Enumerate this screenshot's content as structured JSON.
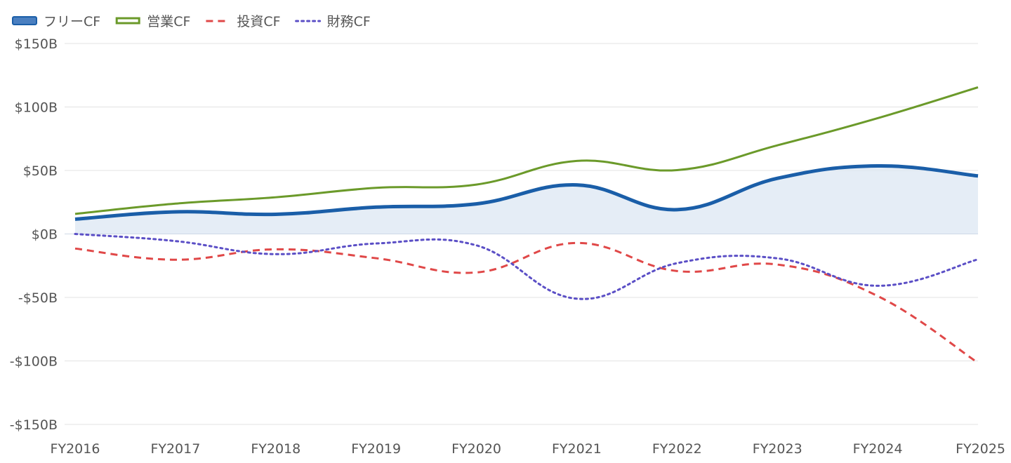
{
  "chart_data": {
    "type": "line",
    "categories": [
      "FY2016",
      "FY2017",
      "FY2018",
      "FY2019",
      "FY2020",
      "FY2021",
      "FY2022",
      "FY2023",
      "FY2024",
      "FY2025"
    ],
    "ylim": [
      -150,
      150
    ],
    "yticks": [
      150,
      100,
      50,
      0,
      -50,
      -100,
      -150
    ],
    "ytick_labels": [
      "$150B",
      "$100B",
      "$50B",
      "$0B",
      "-$50B",
      "-$100B",
      "-$150B"
    ],
    "grid": true,
    "legend_position": "top-left",
    "series": [
      {
        "name": "フリーCF",
        "values": [
          11.6,
          17.4,
          15.5,
          21.1,
          23.7,
          38.6,
          19.1,
          43.8,
          53.6,
          45.7
        ],
        "color": "#1a5ea8",
        "style": "solid-area"
      },
      {
        "name": "営業CF",
        "values": [
          15.8,
          23.9,
          28.9,
          36.3,
          38.9,
          57.5,
          50.3,
          69.8,
          91.2,
          115.5
        ],
        "color": "#6b9a2a",
        "style": "solid"
      },
      {
        "name": "投資CF",
        "values": [
          -11.5,
          -20.3,
          -12.1,
          -19.1,
          -30.3,
          -7.1,
          -29.2,
          -24.1,
          -48.9,
          -101.5
        ],
        "color": "#e04848",
        "style": "dashed"
      },
      {
        "name": "財務CF",
        "values": [
          0.0,
          -5.6,
          -15.9,
          -7.5,
          -9.0,
          -51.0,
          -23.0,
          -19.2,
          -40.8,
          -20.0
        ],
        "color": "#5b4fc6",
        "style": "dotted"
      }
    ]
  }
}
